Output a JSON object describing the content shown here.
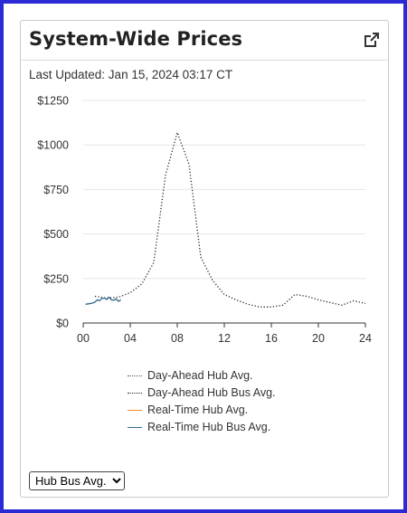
{
  "card": {
    "title": "System-Wide Prices",
    "last_updated": "Last Updated: Jan 15, 2024 03:17 CT"
  },
  "icons": {
    "external_link": "external-link-icon"
  },
  "legend": {
    "items": [
      {
        "label": "Day-Ahead Hub Avg.",
        "style": "dotted",
        "color": "#555555"
      },
      {
        "label": "Day-Ahead Hub Bus Avg.",
        "style": "dotted",
        "color": "#222222"
      },
      {
        "label": "Real-Time Hub Avg.",
        "style": "solid",
        "color": "#f28c28"
      },
      {
        "label": "Real-Time Hub Bus Avg.",
        "style": "solid",
        "color": "#2f6a8a"
      }
    ]
  },
  "selector": {
    "selected": "Hub Bus Avg.",
    "options": [
      "Hub Bus Avg."
    ]
  },
  "chart_data": {
    "type": "line",
    "xlabel": "",
    "ylabel": "",
    "xlim": [
      0,
      24
    ],
    "ylim": [
      0,
      1250
    ],
    "x_ticks": [
      0,
      4,
      8,
      12,
      16,
      20,
      24
    ],
    "x_tick_labels": [
      "00",
      "04",
      "08",
      "12",
      "16",
      "20",
      "24"
    ],
    "y_ticks": [
      0,
      250,
      500,
      750,
      1000,
      1250
    ],
    "y_tick_labels": [
      "$0",
      "$250",
      "$500",
      "$750",
      "$1000",
      "$1250"
    ],
    "grid": "horizontal",
    "series": [
      {
        "name": "Day-Ahead Hub Bus Avg.",
        "style": "dotted",
        "color": "#222222",
        "x": [
          1,
          2,
          3,
          4,
          5,
          6,
          7,
          8,
          9,
          10,
          11,
          12,
          13,
          14,
          15,
          16,
          17,
          18,
          19,
          20,
          21,
          22,
          23,
          24
        ],
        "y": [
          150,
          140,
          145,
          170,
          220,
          340,
          830,
          1070,
          890,
          370,
          240,
          160,
          130,
          105,
          90,
          90,
          100,
          160,
          150,
          130,
          115,
          100,
          125,
          110
        ]
      },
      {
        "name": "Real-Time Hub Bus Avg.",
        "style": "solid",
        "color": "#2f6a8a",
        "x": [
          0.2,
          0.5,
          0.8,
          1.0,
          1.2,
          1.4,
          1.6,
          1.8,
          2.0,
          2.2,
          2.4,
          2.6,
          2.8,
          3.0,
          3.2
        ],
        "y": [
          105,
          108,
          112,
          118,
          130,
          125,
          138,
          140,
          132,
          145,
          130,
          128,
          135,
          122,
          130
        ]
      }
    ]
  }
}
